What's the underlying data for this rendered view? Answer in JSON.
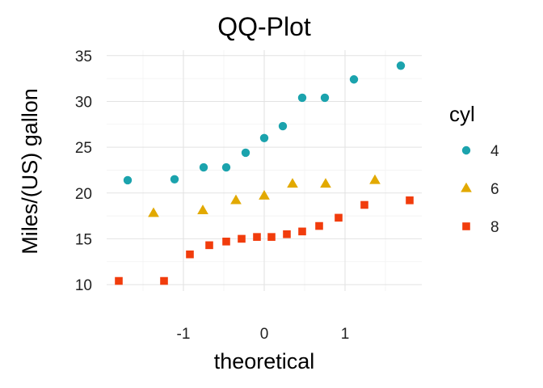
{
  "chart_data": {
    "type": "scatter",
    "title": "QQ-Plot",
    "xlabel": "theoretical",
    "ylabel": "Miles/(US) gallon",
    "xlim": [
      -1.95,
      1.95
    ],
    "ylim": [
      9.3,
      35.6
    ],
    "x_ticks": [
      -1,
      0,
      1
    ],
    "x_tick_labels": [
      "-1",
      "0",
      "1"
    ],
    "y_ticks": [
      10,
      15,
      20,
      25,
      30,
      35
    ],
    "y_tick_labels": [
      "10",
      "15",
      "20",
      "25",
      "30",
      "35"
    ],
    "grid": true,
    "legend": {
      "title": "cyl",
      "position": "right"
    },
    "series": [
      {
        "name": "4",
        "marker": "circle",
        "color": "#1BA3AD",
        "points": [
          {
            "x": -1.69,
            "y": 21.4
          },
          {
            "x": -1.11,
            "y": 21.5
          },
          {
            "x": -0.75,
            "y": 22.8
          },
          {
            "x": -0.47,
            "y": 22.8
          },
          {
            "x": -0.23,
            "y": 24.4
          },
          {
            "x": 0.0,
            "y": 26.0
          },
          {
            "x": 0.23,
            "y": 27.3
          },
          {
            "x": 0.47,
            "y": 30.4
          },
          {
            "x": 0.75,
            "y": 30.4
          },
          {
            "x": 1.11,
            "y": 32.4
          },
          {
            "x": 1.69,
            "y": 33.9
          }
        ]
      },
      {
        "name": "6",
        "marker": "triangle",
        "color": "#E2A900",
        "points": [
          {
            "x": -1.37,
            "y": 17.8
          },
          {
            "x": -0.76,
            "y": 18.1
          },
          {
            "x": -0.35,
            "y": 19.2
          },
          {
            "x": 0.0,
            "y": 19.7
          },
          {
            "x": 0.35,
            "y": 21.0
          },
          {
            "x": 0.76,
            "y": 21.0
          },
          {
            "x": 1.37,
            "y": 21.4
          }
        ]
      },
      {
        "name": "8",
        "marker": "square",
        "color": "#F13C0C",
        "points": [
          {
            "x": -1.8,
            "y": 10.4
          },
          {
            "x": -1.24,
            "y": 10.4
          },
          {
            "x": -0.92,
            "y": 13.3
          },
          {
            "x": -0.68,
            "y": 14.3
          },
          {
            "x": -0.47,
            "y": 14.7
          },
          {
            "x": -0.28,
            "y": 15.0
          },
          {
            "x": -0.09,
            "y": 15.2
          },
          {
            "x": 0.09,
            "y": 15.2
          },
          {
            "x": 0.28,
            "y": 15.5
          },
          {
            "x": 0.47,
            "y": 15.8
          },
          {
            "x": 0.68,
            "y": 16.4
          },
          {
            "x": 0.92,
            "y": 17.3
          },
          {
            "x": 1.24,
            "y": 18.7
          },
          {
            "x": 1.8,
            "y": 19.2
          }
        ]
      }
    ]
  }
}
